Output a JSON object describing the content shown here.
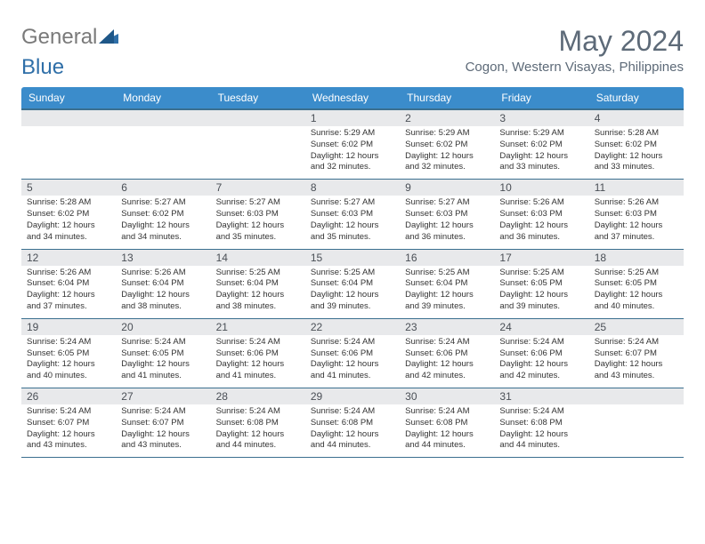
{
  "logo": {
    "gray": "General",
    "blue": "Blue"
  },
  "title": "May 2024",
  "location": "Cogon, Western Visayas, Philippines",
  "colors": {
    "header_bg": "#3b8ccb",
    "header_text": "#ffffff",
    "daynum_bg": "#e8e9eb",
    "border": "#3b6f8f",
    "title_color": "#5d6a78"
  },
  "day_names": [
    "Sunday",
    "Monday",
    "Tuesday",
    "Wednesday",
    "Thursday",
    "Friday",
    "Saturday"
  ],
  "weeks": [
    [
      {
        "n": "",
        "sr": "",
        "ss": "",
        "dl": ""
      },
      {
        "n": "",
        "sr": "",
        "ss": "",
        "dl": ""
      },
      {
        "n": "",
        "sr": "",
        "ss": "",
        "dl": ""
      },
      {
        "n": "1",
        "sr": "5:29 AM",
        "ss": "6:02 PM",
        "dl": "12 hours and 32 minutes."
      },
      {
        "n": "2",
        "sr": "5:29 AM",
        "ss": "6:02 PM",
        "dl": "12 hours and 32 minutes."
      },
      {
        "n": "3",
        "sr": "5:29 AM",
        "ss": "6:02 PM",
        "dl": "12 hours and 33 minutes."
      },
      {
        "n": "4",
        "sr": "5:28 AM",
        "ss": "6:02 PM",
        "dl": "12 hours and 33 minutes."
      }
    ],
    [
      {
        "n": "5",
        "sr": "5:28 AM",
        "ss": "6:02 PM",
        "dl": "12 hours and 34 minutes."
      },
      {
        "n": "6",
        "sr": "5:27 AM",
        "ss": "6:02 PM",
        "dl": "12 hours and 34 minutes."
      },
      {
        "n": "7",
        "sr": "5:27 AM",
        "ss": "6:03 PM",
        "dl": "12 hours and 35 minutes."
      },
      {
        "n": "8",
        "sr": "5:27 AM",
        "ss": "6:03 PM",
        "dl": "12 hours and 35 minutes."
      },
      {
        "n": "9",
        "sr": "5:27 AM",
        "ss": "6:03 PM",
        "dl": "12 hours and 36 minutes."
      },
      {
        "n": "10",
        "sr": "5:26 AM",
        "ss": "6:03 PM",
        "dl": "12 hours and 36 minutes."
      },
      {
        "n": "11",
        "sr": "5:26 AM",
        "ss": "6:03 PM",
        "dl": "12 hours and 37 minutes."
      }
    ],
    [
      {
        "n": "12",
        "sr": "5:26 AM",
        "ss": "6:04 PM",
        "dl": "12 hours and 37 minutes."
      },
      {
        "n": "13",
        "sr": "5:26 AM",
        "ss": "6:04 PM",
        "dl": "12 hours and 38 minutes."
      },
      {
        "n": "14",
        "sr": "5:25 AM",
        "ss": "6:04 PM",
        "dl": "12 hours and 38 minutes."
      },
      {
        "n": "15",
        "sr": "5:25 AM",
        "ss": "6:04 PM",
        "dl": "12 hours and 39 minutes."
      },
      {
        "n": "16",
        "sr": "5:25 AM",
        "ss": "6:04 PM",
        "dl": "12 hours and 39 minutes."
      },
      {
        "n": "17",
        "sr": "5:25 AM",
        "ss": "6:05 PM",
        "dl": "12 hours and 39 minutes."
      },
      {
        "n": "18",
        "sr": "5:25 AM",
        "ss": "6:05 PM",
        "dl": "12 hours and 40 minutes."
      }
    ],
    [
      {
        "n": "19",
        "sr": "5:24 AM",
        "ss": "6:05 PM",
        "dl": "12 hours and 40 minutes."
      },
      {
        "n": "20",
        "sr": "5:24 AM",
        "ss": "6:05 PM",
        "dl": "12 hours and 41 minutes."
      },
      {
        "n": "21",
        "sr": "5:24 AM",
        "ss": "6:06 PM",
        "dl": "12 hours and 41 minutes."
      },
      {
        "n": "22",
        "sr": "5:24 AM",
        "ss": "6:06 PM",
        "dl": "12 hours and 41 minutes."
      },
      {
        "n": "23",
        "sr": "5:24 AM",
        "ss": "6:06 PM",
        "dl": "12 hours and 42 minutes."
      },
      {
        "n": "24",
        "sr": "5:24 AM",
        "ss": "6:06 PM",
        "dl": "12 hours and 42 minutes."
      },
      {
        "n": "25",
        "sr": "5:24 AM",
        "ss": "6:07 PM",
        "dl": "12 hours and 43 minutes."
      }
    ],
    [
      {
        "n": "26",
        "sr": "5:24 AM",
        "ss": "6:07 PM",
        "dl": "12 hours and 43 minutes."
      },
      {
        "n": "27",
        "sr": "5:24 AM",
        "ss": "6:07 PM",
        "dl": "12 hours and 43 minutes."
      },
      {
        "n": "28",
        "sr": "5:24 AM",
        "ss": "6:08 PM",
        "dl": "12 hours and 44 minutes."
      },
      {
        "n": "29",
        "sr": "5:24 AM",
        "ss": "6:08 PM",
        "dl": "12 hours and 44 minutes."
      },
      {
        "n": "30",
        "sr": "5:24 AM",
        "ss": "6:08 PM",
        "dl": "12 hours and 44 minutes."
      },
      {
        "n": "31",
        "sr": "5:24 AM",
        "ss": "6:08 PM",
        "dl": "12 hours and 44 minutes."
      },
      {
        "n": "",
        "sr": "",
        "ss": "",
        "dl": ""
      }
    ]
  ],
  "labels": {
    "sunrise": "Sunrise:",
    "sunset": "Sunset:",
    "daylight": "Daylight:"
  }
}
